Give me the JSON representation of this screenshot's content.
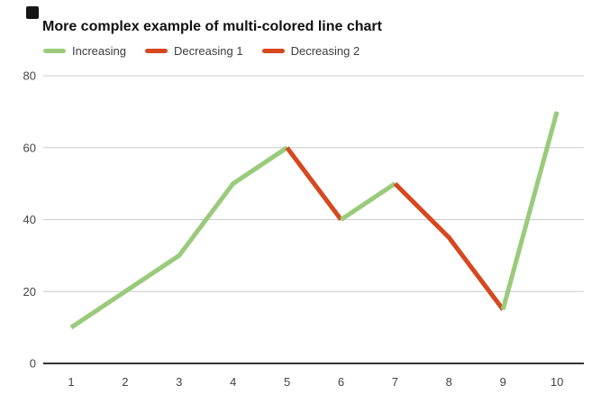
{
  "title": "More complex example of multi-colored line chart",
  "legend": [
    {
      "label": "Increasing",
      "color": "#9aca7b"
    },
    {
      "label": "Decreasing 1",
      "color": "#d6481f"
    },
    {
      "label": "Decreasing 2",
      "color": "#d6481f"
    }
  ],
  "colors": {
    "increasing": "#9aca7b",
    "decreasing": "#d6481f",
    "gridline": "#cccccc",
    "axis": "#333333",
    "tick_label": "#444444",
    "corner_marker": "#161616"
  },
  "chart_data": {
    "type": "line",
    "title": "More complex example of multi-colored line chart",
    "x": [
      1,
      2,
      3,
      4,
      5,
      6,
      7,
      8,
      9,
      10
    ],
    "values": [
      10,
      20,
      30,
      50,
      60,
      40,
      50,
      35,
      15,
      70
    ],
    "segments": [
      {
        "name": "Increasing",
        "from": 1,
        "to": 5,
        "color": "#9aca7b"
      },
      {
        "name": "Decreasing 1",
        "from": 5,
        "to": 6,
        "color": "#d6481f"
      },
      {
        "name": "Increasing",
        "from": 6,
        "to": 7,
        "color": "#9aca7b"
      },
      {
        "name": "Decreasing 2",
        "from": 7,
        "to": 9,
        "color": "#d6481f"
      },
      {
        "name": "Increasing",
        "from": 9,
        "to": 10,
        "color": "#9aca7b"
      }
    ],
    "y_ticks": [
      0,
      20,
      40,
      60,
      80
    ],
    "x_ticks": [
      "1",
      "2",
      "3",
      "4",
      "5",
      "6",
      "7",
      "8",
      "9",
      "10"
    ],
    "xlabel": "",
    "ylabel": "",
    "ylim": [
      0,
      85
    ],
    "grid": true,
    "legend_position": "top",
    "legend_entries": [
      "Increasing",
      "Decreasing 1",
      "Decreasing 2"
    ]
  }
}
